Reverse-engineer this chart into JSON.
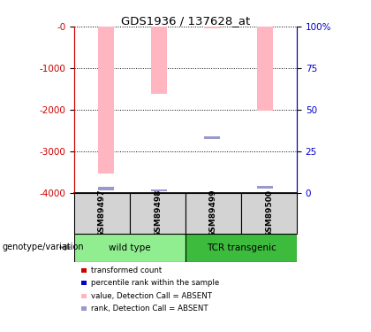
{
  "title": "GDS1936 / 137628_at",
  "samples": [
    "GSM89497",
    "GSM89498",
    "GSM89499",
    "GSM89500"
  ],
  "ylim_left": [
    -4000,
    0
  ],
  "ylim_right": [
    0,
    100
  ],
  "yticks_left": [
    0,
    -1000,
    -2000,
    -3000,
    -4000
  ],
  "yticks_right": [
    0,
    25,
    50,
    75,
    100
  ],
  "ytick_labels_left": [
    "-0",
    "-1000",
    "-2000",
    "-3000",
    "-4000"
  ],
  "ytick_labels_right": [
    "0",
    "25",
    "50",
    "75",
    "100%"
  ],
  "pink_bar_tops": [
    0,
    0,
    0,
    0
  ],
  "pink_bar_bottoms": [
    -3550,
    -1620,
    -50,
    -2020
  ],
  "blue_bar_tops": [
    -3870,
    -3920,
    -2640,
    -3840
  ],
  "blue_bar_bottoms": [
    -3950,
    -3970,
    -2700,
    -3910
  ],
  "pink_color": "#ffb6c1",
  "blue_color": "#9999cc",
  "bar_width": 0.3,
  "left_axis_color": "#cc0000",
  "right_axis_color": "#0000cc",
  "sample_area_color": "#d3d3d3",
  "wt_color": "#90ee90",
  "tcr_color": "#3dbb3d",
  "legend_items": [
    {
      "color": "#cc0000",
      "label": "transformed count"
    },
    {
      "color": "#0000cc",
      "label": "percentile rank within the sample"
    },
    {
      "color": "#ffb6c1",
      "label": "value, Detection Call = ABSENT"
    },
    {
      "color": "#9999cc",
      "label": "rank, Detection Call = ABSENT"
    }
  ]
}
